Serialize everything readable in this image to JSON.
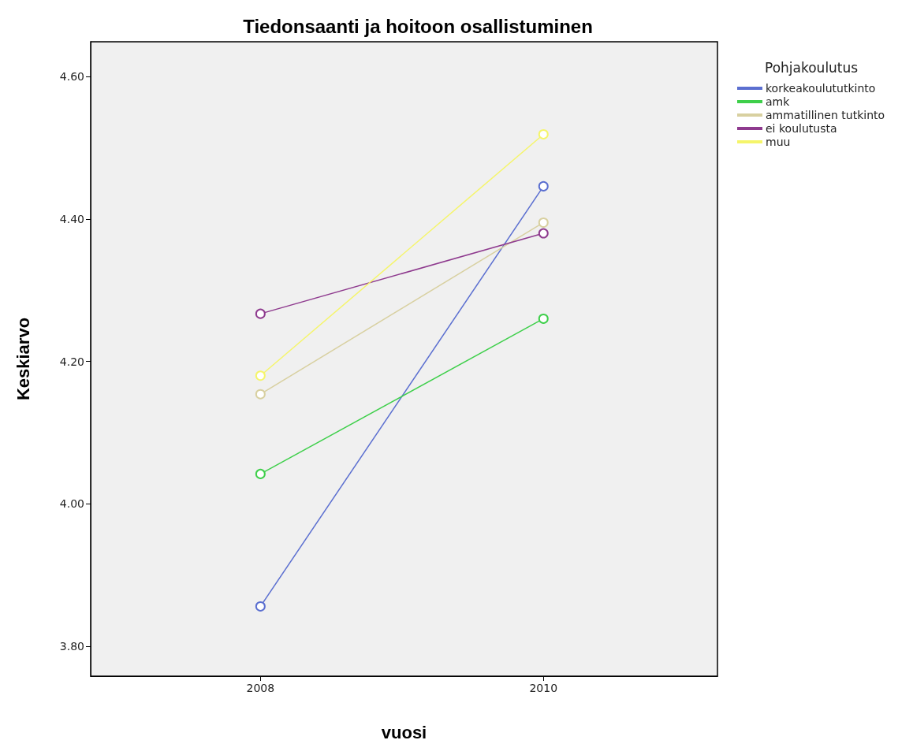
{
  "chart_data": {
    "type": "line",
    "title": "Tiedonsaanti ja hoitoon osallistuminen",
    "xlabel": "vuosi",
    "ylabel": "Keskiarvo",
    "legend_title": "Pohjakoulutus",
    "legend": "top right",
    "marker": "circle",
    "grid": false,
    "x": [
      2008,
      2010
    ],
    "xlim": [
      2006.8,
      2011.23
    ],
    "xticks": [
      2008,
      2010
    ],
    "ylim": [
      3.758,
      4.649
    ],
    "yticks": [
      {
        "value": 3.8,
        "label": "3.80"
      },
      {
        "value": 4.0,
        "label": "4.00"
      },
      {
        "value": 4.2,
        "label": "4.20"
      },
      {
        "value": 4.4,
        "label": "4.40"
      },
      {
        "value": 4.6,
        "label": "4.60"
      }
    ],
    "series": [
      {
        "name": "korkeakoulututkinto",
        "color": "#5b6fd0",
        "values": [
          3.856,
          4.446
        ]
      },
      {
        "name": "amk",
        "color": "#3ecf4a",
        "values": [
          4.042,
          4.26
        ]
      },
      {
        "name": "ammatillinen tutkinto",
        "color": "#d8d0a0",
        "values": [
          4.154,
          4.395
        ]
      },
      {
        "name": "ei koulutusta",
        "color": "#8e3a8e",
        "values": [
          4.267,
          4.38
        ]
      },
      {
        "name": "muu",
        "color": "#f5f56a",
        "values": [
          4.18,
          4.519
        ]
      }
    ]
  }
}
